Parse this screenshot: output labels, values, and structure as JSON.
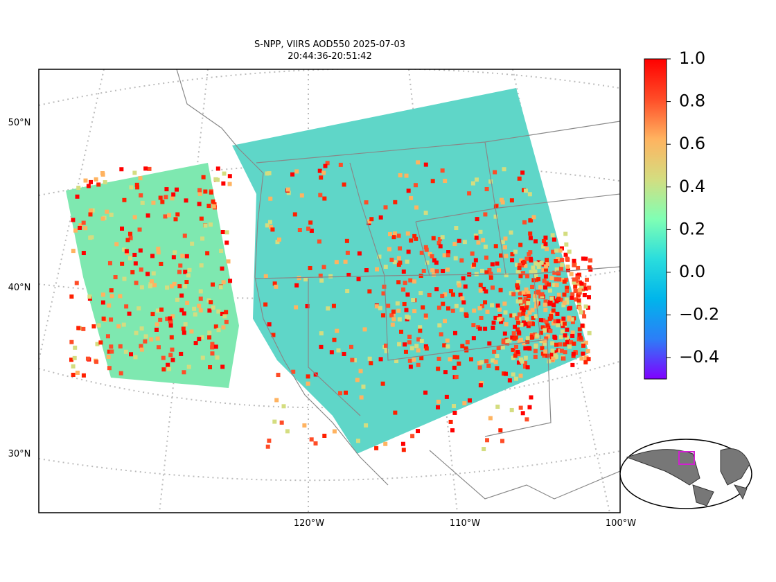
{
  "title_lines": [
    "S-NPP, VIIRS AOD550 2025-07-03",
    "20:44:36-20:51:42"
  ],
  "lat_labels": [
    "50°N",
    "40°N",
    "30°N"
  ],
  "lon_labels": [
    "120°W",
    "110°W",
    "100°W"
  ],
  "colorbar": {
    "colormap": "rainbow",
    "lim": [
      -0.5,
      1
    ],
    "ticks": [
      {
        "value": 1,
        "label": "1.0"
      },
      {
        "value": 0.8,
        "label": "0.8"
      },
      {
        "value": 0.6,
        "label": "0.6"
      },
      {
        "value": 0.4,
        "label": "0.4"
      },
      {
        "value": 0.2,
        "label": "0.2"
      },
      {
        "value": 0,
        "label": "0.0"
      },
      {
        "value": -0.2,
        "label": "−0.2"
      },
      {
        "value": -0.4,
        "label": "−0.4"
      }
    ]
  }
}
